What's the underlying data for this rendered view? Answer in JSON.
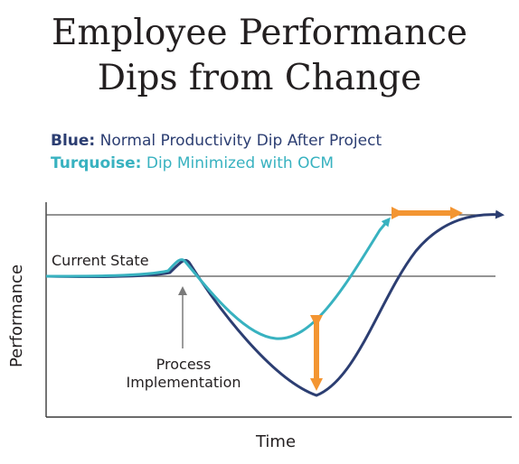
{
  "title_line1": "Employee Performance",
  "title_line2": "Dips from Change",
  "legend": {
    "blue_key": "Blue:",
    "blue_text": " Normal Productivity Dip After Project",
    "turq_key": "Turquoise:",
    "turq_text": " Dip Minimized with OCM"
  },
  "colors": {
    "blue": "#2c3e72",
    "turquoise": "#38b2c0",
    "orange": "#f39532",
    "gray": "#7a7a7a"
  },
  "chart_data": {
    "type": "line",
    "xlabel": "Time",
    "ylabel": "Performance",
    "annotations": [
      "Current State",
      "Process",
      "Implementation"
    ],
    "series": [
      {
        "color": "blue",
        "values": "normal productivity dip after project"
      },
      {
        "color": "turquoise",
        "values": "dip minimized with OCM"
      }
    ]
  }
}
